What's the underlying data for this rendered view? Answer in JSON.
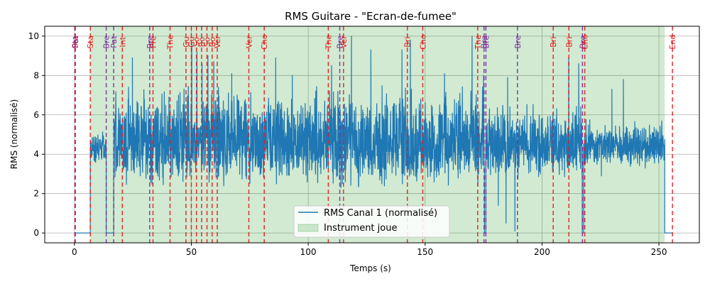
{
  "chart_data": {
    "type": "line",
    "title": "RMS Guitare - \"Ecran-de-fumee\"",
    "xlabel": "Temps (s)",
    "ylabel": "RMS (normalisé)",
    "xlim": [
      -12.7,
      267.3
    ],
    "ylim": [
      -0.5,
      10.5
    ],
    "xticks": [
      0,
      50,
      100,
      150,
      200,
      250
    ],
    "yticks": [
      0,
      2,
      4,
      6,
      8,
      10
    ],
    "grid": true,
    "legend_position": "lower-center",
    "colors": {
      "series": "#1f77b4",
      "band": "#2ca02c",
      "marker_red": "#e41a1c",
      "marker_purple": "#7b2d9e"
    },
    "series": [
      {
        "name": "RMS Canal 1 (normalisé)",
        "segments": [
          {
            "x": [
              0,
              6.8
            ],
            "y": [
              0,
              0
            ]
          },
          {
            "x": [
              6.8,
              13.6
            ],
            "style": "active",
            "mean": 4.3,
            "amp": 0.6
          },
          {
            "x": [
              13.6,
              16.8
            ],
            "y": [
              0,
              0
            ]
          },
          {
            "x": [
              16.8,
              175.4
            ],
            "style": "active",
            "mean": 4.6,
            "amp": 1.6
          },
          {
            "x": [
              175.4,
              176.0
            ],
            "y": [
              0,
              0
            ]
          },
          {
            "x": [
              176.0,
              217.2
            ],
            "style": "active",
            "mean": 4.4,
            "amp": 1.2
          },
          {
            "x": [
              217.2,
              217.8
            ],
            "y": [
              0,
              0
            ]
          },
          {
            "x": [
              217.8,
              252.5
            ],
            "style": "active",
            "mean": 4.4,
            "amp": 0.8
          },
          {
            "x": [
              252.5,
              256
            ],
            "y": [
              0,
              0
            ]
          }
        ],
        "peaks": [
          {
            "x": 24.8,
            "y": 8.9
          },
          {
            "x": 50.2,
            "y": 9.6
          },
          {
            "x": 52.4,
            "y": 9.2
          },
          {
            "x": 54.6,
            "y": 8.6
          },
          {
            "x": 57.1,
            "y": 9.0
          },
          {
            "x": 59.6,
            "y": 8.7
          },
          {
            "x": 67.3,
            "y": 8.1
          },
          {
            "x": 86.1,
            "y": 8.9
          },
          {
            "x": 93.2,
            "y": 8.0
          },
          {
            "x": 110.0,
            "y": 8.5
          },
          {
            "x": 118.5,
            "y": 10.0
          },
          {
            "x": 126.8,
            "y": 9.3
          },
          {
            "x": 140.1,
            "y": 9.3
          },
          {
            "x": 143.7,
            "y": 9.8
          },
          {
            "x": 158.3,
            "y": 8.1
          },
          {
            "x": 170.1,
            "y": 10.0
          },
          {
            "x": 175.0,
            "y": 8.0
          },
          {
            "x": 185.3,
            "y": 7.9
          },
          {
            "x": 211.4,
            "y": 8.9
          },
          {
            "x": 215.7,
            "y": 8.6
          },
          {
            "x": 229.9,
            "y": 7.3
          },
          {
            "x": 234.8,
            "y": 7.8
          }
        ],
        "dips": [
          {
            "x": 114.0,
            "y": 2.3
          },
          {
            "x": 114.6,
            "y": 2.5
          },
          {
            "x": 140.3,
            "y": 2.5
          },
          {
            "x": 181.3,
            "y": 1.4
          },
          {
            "x": 184.6,
            "y": 0.5
          },
          {
            "x": 188.4,
            "y": 0.1
          },
          {
            "x": 225.4,
            "y": 2.9
          }
        ]
      }
    ],
    "band": {
      "name": "Instrument joue",
      "x_start": 6.8,
      "x_end": 252.5
    },
    "markers": [
      {
        "x": 0.2,
        "label": "Sta",
        "color": "red"
      },
      {
        "x": 0.4,
        "label": "Pat",
        "color": "purple"
      },
      {
        "x": 6.8,
        "label": "Sta",
        "color": "red"
      },
      {
        "x": 13.6,
        "label": "Bre",
        "color": "purple"
      },
      {
        "x": 16.8,
        "label": "Pat",
        "color": "purple"
      },
      {
        "x": 20.5,
        "label": "Int",
        "color": "red"
      },
      {
        "x": 32.2,
        "label": "Bre",
        "color": "purple"
      },
      {
        "x": 33.6,
        "label": "Pre",
        "color": "red"
      },
      {
        "x": 40.9,
        "label": "The",
        "color": "red"
      },
      {
        "x": 47.7,
        "label": "Gu",
        "color": "red"
      },
      {
        "x": 50.0,
        "label": "Gu",
        "color": "red"
      },
      {
        "x": 52.2,
        "label": "So",
        "color": "red"
      },
      {
        "x": 54.4,
        "label": "Bo",
        "color": "red"
      },
      {
        "x": 56.7,
        "label": "So",
        "color": "red"
      },
      {
        "x": 58.9,
        "label": "Bo",
        "color": "red"
      },
      {
        "x": 61.1,
        "label": "Ver",
        "color": "red"
      },
      {
        "x": 74.6,
        "label": "Ver",
        "color": "red"
      },
      {
        "x": 81.2,
        "label": "Cho",
        "color": "red"
      },
      {
        "x": 108.6,
        "label": "The",
        "color": "red"
      },
      {
        "x": 113.5,
        "label": "Bre",
        "color": "purple"
      },
      {
        "x": 115.1,
        "label": "Ver",
        "color": "red"
      },
      {
        "x": 142.4,
        "label": "Bri",
        "color": "red"
      },
      {
        "x": 149.0,
        "label": "Cho",
        "color": "red"
      },
      {
        "x": 172.5,
        "label": "The",
        "color": "red"
      },
      {
        "x": 175.2,
        "label": "Bre",
        "color": "purple"
      },
      {
        "x": 176.0,
        "label": "Bre",
        "color": "purple"
      },
      {
        "x": 189.5,
        "label": "Bre",
        "color": "purple"
      },
      {
        "x": 204.8,
        "label": "Bri",
        "color": "red"
      },
      {
        "x": 211.5,
        "label": "Bri",
        "color": "red"
      },
      {
        "x": 217.3,
        "label": "Bre",
        "color": "purple"
      },
      {
        "x": 218.3,
        "label": "Cho",
        "color": "red"
      },
      {
        "x": 255.8,
        "label": "End",
        "color": "red"
      }
    ]
  }
}
